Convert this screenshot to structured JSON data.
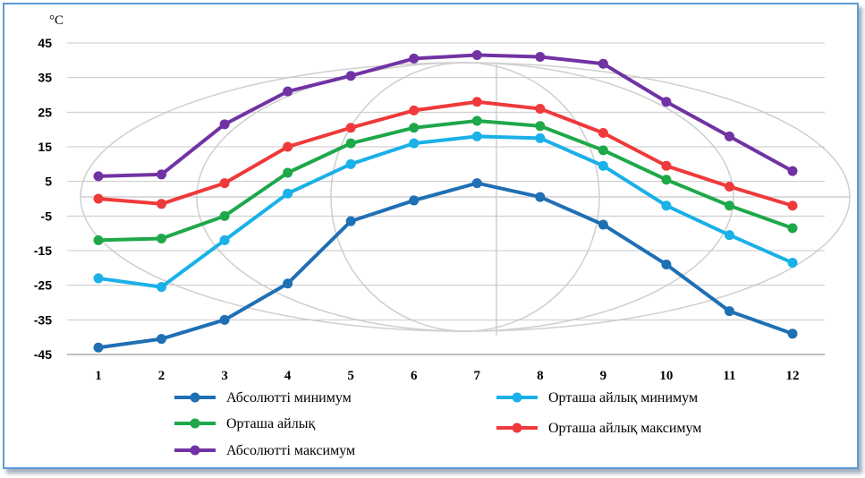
{
  "chart_data": {
    "type": "line",
    "unit_label": "°C",
    "categories": [
      "1",
      "2",
      "3",
      "4",
      "5",
      "6",
      "7",
      "8",
      "9",
      "10",
      "11",
      "12"
    ],
    "yticks": [
      "45",
      "35",
      "25",
      "15",
      "5",
      "-5",
      "-15",
      "-25",
      "-35",
      "-45"
    ],
    "ylim": [
      -45,
      45
    ],
    "grid": true,
    "legend_position": "bottom",
    "series": [
      {
        "name": "Абсолютті минимум",
        "color": "#1f6fb4",
        "values": [
          -43,
          -40.5,
          -35,
          -24.5,
          -6.5,
          -0.5,
          4.5,
          0.5,
          -7.5,
          -19,
          -32.5,
          -39
        ]
      },
      {
        "name": "Орташа айлық минимум",
        "color": "#1ab0e8",
        "values": [
          -23,
          -25.5,
          -12,
          1.5,
          10,
          16,
          18,
          17.5,
          9.5,
          -2,
          -10.5,
          -18.5
        ]
      },
      {
        "name": "Орташа айлық",
        "color": "#1ea84a",
        "values": [
          -12,
          -11.5,
          -5,
          7.5,
          16,
          20.5,
          22.5,
          21,
          14,
          5.5,
          -2,
          -8.5
        ]
      },
      {
        "name": "Орташа айлық максимум",
        "color": "#f0393a",
        "values": [
          0,
          -1.5,
          4.5,
          15,
          20.5,
          25.5,
          28,
          26,
          19,
          9.5,
          3.5,
          -2
        ]
      },
      {
        "name": "Абсолютті максимум",
        "color": "#7133a3",
        "values": [
          6.5,
          7,
          21.5,
          31,
          35.5,
          40.5,
          41.5,
          41,
          39,
          28,
          18,
          8
        ]
      }
    ]
  }
}
